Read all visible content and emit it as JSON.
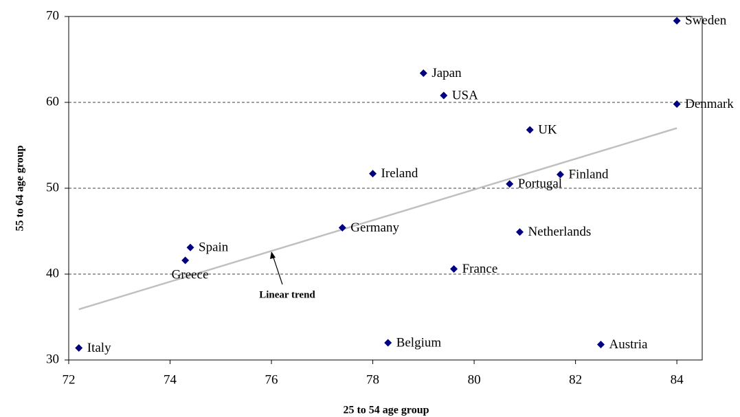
{
  "chart_data": {
    "type": "scatter",
    "x_label": "25 to 54 age group",
    "y_label": "55 to 64 age group",
    "xlim": [
      72,
      84.5
    ],
    "ylim": [
      30,
      70
    ],
    "xticks": [
      72,
      74,
      76,
      78,
      80,
      82,
      84
    ],
    "yticks": [
      30,
      40,
      50,
      60,
      70
    ],
    "grid": true,
    "series": [
      {
        "color": "#000080",
        "labels": [
          "Italy",
          "Greece",
          "Spain",
          "Germany",
          "Ireland",
          "Belgium",
          "Japan",
          "USA",
          "France",
          "Portugal",
          "Netherlands",
          "UK",
          "Finland",
          "Austria",
          "Sweden",
          "Denmark"
        ],
        "x": [
          72.2,
          74.3,
          74.4,
          77.4,
          78.0,
          78.3,
          79.0,
          79.4,
          79.6,
          80.7,
          80.9,
          81.1,
          81.7,
          82.5,
          84.0,
          84.0
        ],
        "values": [
          31.4,
          41.6,
          43.1,
          45.4,
          51.7,
          32.0,
          63.4,
          60.8,
          40.6,
          50.5,
          44.9,
          56.8,
          51.6,
          31.8,
          69.5,
          59.8
        ]
      }
    ],
    "trend": {
      "color": "#c0c0c0",
      "x": [
        72.2,
        84.0
      ],
      "values": [
        35.9,
        57.0
      ]
    },
    "annotation": "Linear trend"
  }
}
